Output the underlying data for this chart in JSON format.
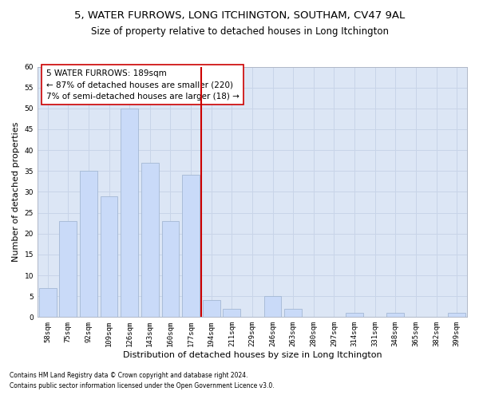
{
  "title": "5, WATER FURROWS, LONG ITCHINGTON, SOUTHAM, CV47 9AL",
  "subtitle": "Size of property relative to detached houses in Long Itchington",
  "xlabel": "Distribution of detached houses by size in Long Itchington",
  "ylabel": "Number of detached properties",
  "footnote1": "Contains HM Land Registry data © Crown copyright and database right 2024.",
  "footnote2": "Contains public sector information licensed under the Open Government Licence v3.0.",
  "categories": [
    "58sqm",
    "75sqm",
    "92sqm",
    "109sqm",
    "126sqm",
    "143sqm",
    "160sqm",
    "177sqm",
    "194sqm",
    "211sqm",
    "229sqm",
    "246sqm",
    "263sqm",
    "280sqm",
    "297sqm",
    "314sqm",
    "331sqm",
    "348sqm",
    "365sqm",
    "382sqm",
    "399sqm"
  ],
  "values": [
    7,
    23,
    35,
    29,
    50,
    37,
    23,
    34,
    4,
    2,
    0,
    5,
    2,
    0,
    0,
    1,
    0,
    1,
    0,
    0,
    1
  ],
  "bar_color": "#c9daf8",
  "bar_edge_color": "#a4b8d4",
  "vline_x": 7.5,
  "vline_color": "#cc0000",
  "annotation_text": "5 WATER FURROWS: 189sqm\n← 87% of detached houses are smaller (220)\n7% of semi-detached houses are larger (18) →",
  "annotation_box_facecolor": "#ffffff",
  "annotation_box_edge_color": "#cc0000",
  "ylim": [
    0,
    60
  ],
  "yticks": [
    0,
    5,
    10,
    15,
    20,
    25,
    30,
    35,
    40,
    45,
    50,
    55,
    60
  ],
  "grid_color": "#c8d4e8",
  "bg_color": "#dce6f5",
  "title_fontsize": 9.5,
  "subtitle_fontsize": 8.5,
  "xlabel_fontsize": 8,
  "ylabel_fontsize": 8,
  "tick_fontsize": 6.5,
  "annotation_fontsize": 7.5,
  "footnote_fontsize": 5.5
}
